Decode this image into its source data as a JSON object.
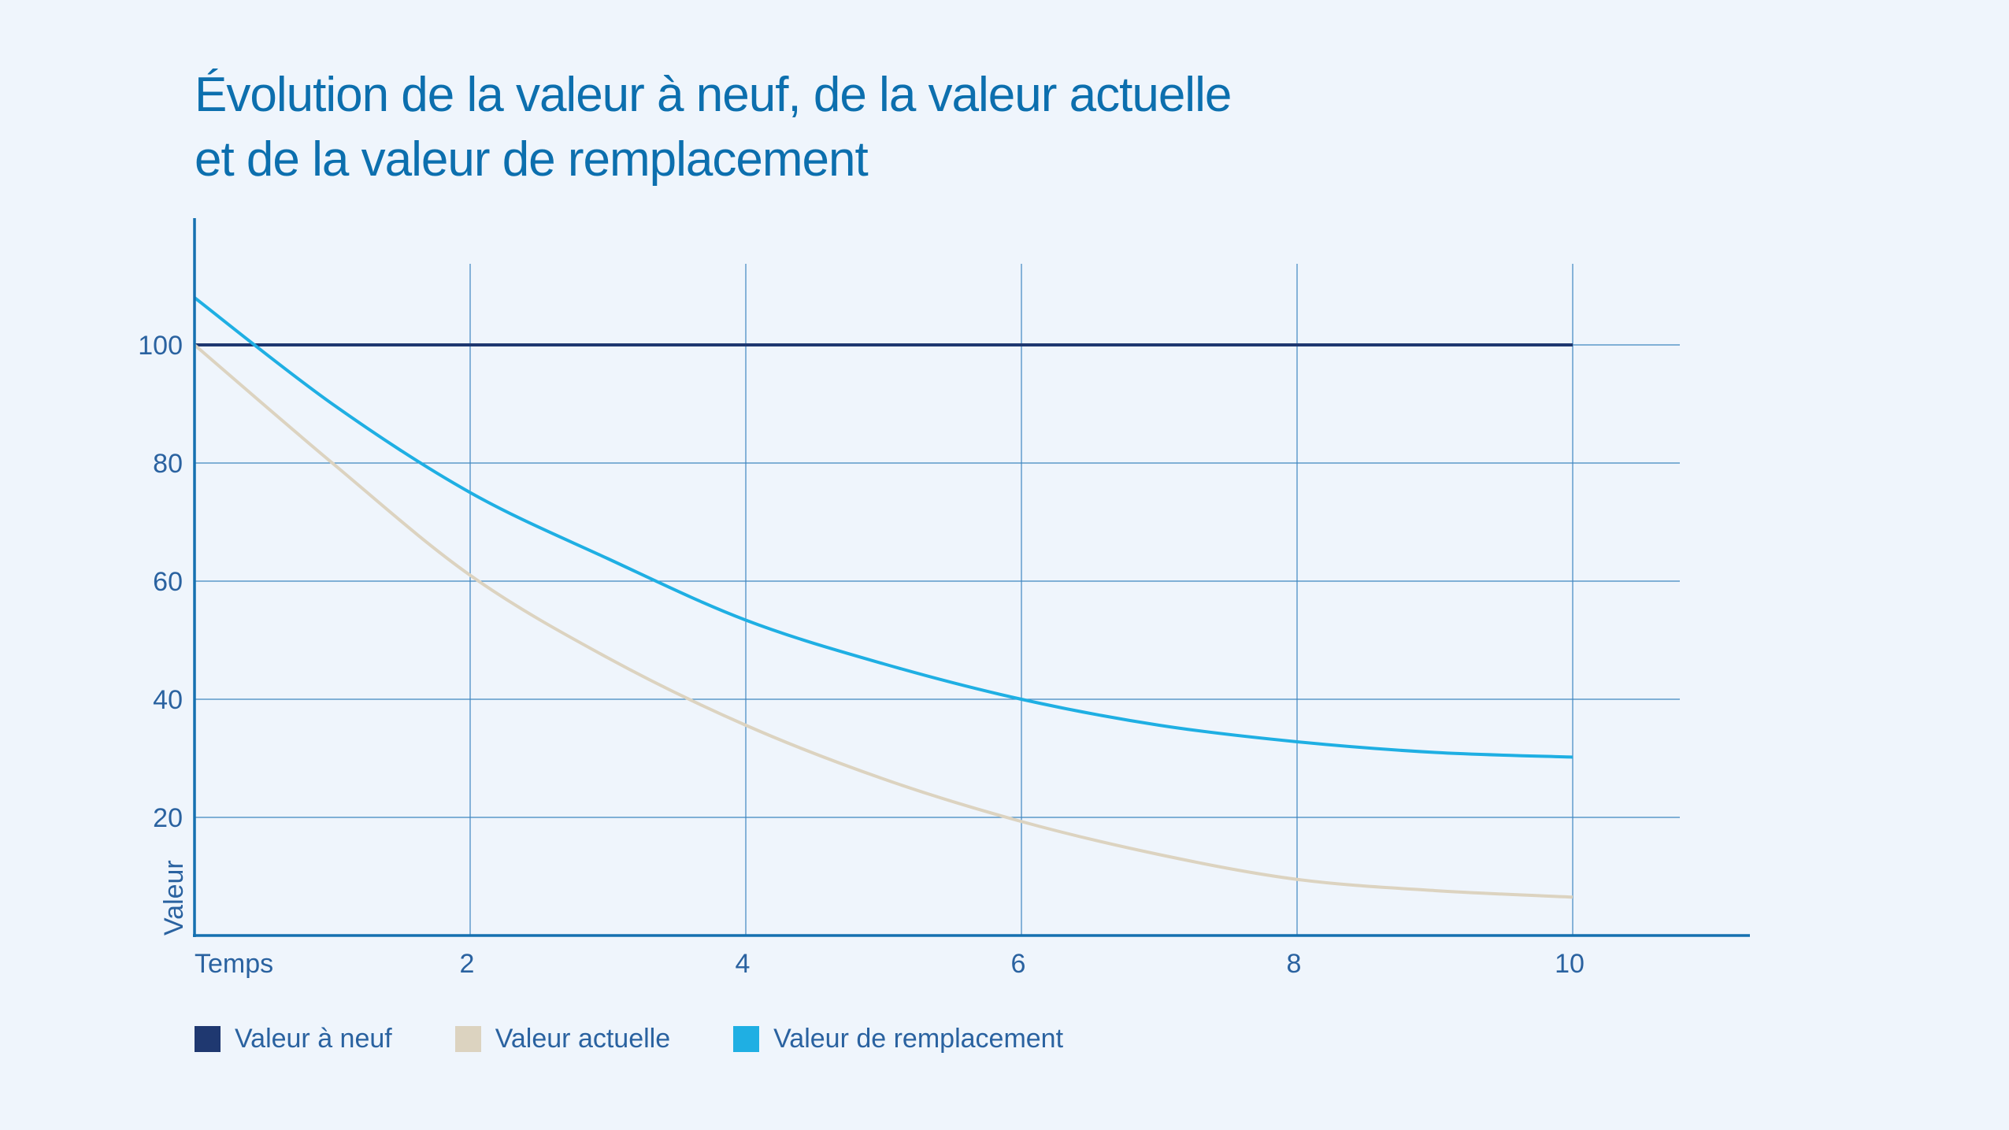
{
  "chart_data": {
    "type": "line",
    "title": "Évolution de la valeur à neuf, de la valeur actuelle et de la valeur de remplacement",
    "title_lines": [
      "Évolution de la valeur à neuf, de la valeur actuelle",
      "et de la valeur de remplacement"
    ],
    "xlabel": "Temps",
    "ylabel": "Valeur",
    "x": [
      0,
      1,
      2,
      3,
      4,
      5,
      6,
      7,
      8,
      9,
      10
    ],
    "xticks": [
      2,
      4,
      6,
      8,
      10
    ],
    "yticks": [
      20,
      40,
      60,
      80,
      100
    ],
    "xlim": [
      0,
      10
    ],
    "ylim": [
      0,
      100
    ],
    "grid": true,
    "legend_position": "bottom",
    "series": [
      {
        "name": "Valeur à neuf",
        "color": "#1f3870",
        "values": [
          100,
          100,
          100,
          100,
          100,
          100,
          100,
          100,
          100,
          100,
          100
        ]
      },
      {
        "name": "Valeur actuelle",
        "color": "#dcd3c0",
        "values": [
          100,
          80,
          61,
          47,
          35.6,
          26.5,
          19.3,
          13.7,
          9.5,
          7.6,
          6.5
        ]
      },
      {
        "name": "Valeur de remplacement",
        "color": "#1fafe3",
        "values": [
          108,
          90,
          75,
          63.8,
          53.4,
          46,
          40,
          35.6,
          32.8,
          31,
          30.2
        ]
      }
    ]
  }
}
